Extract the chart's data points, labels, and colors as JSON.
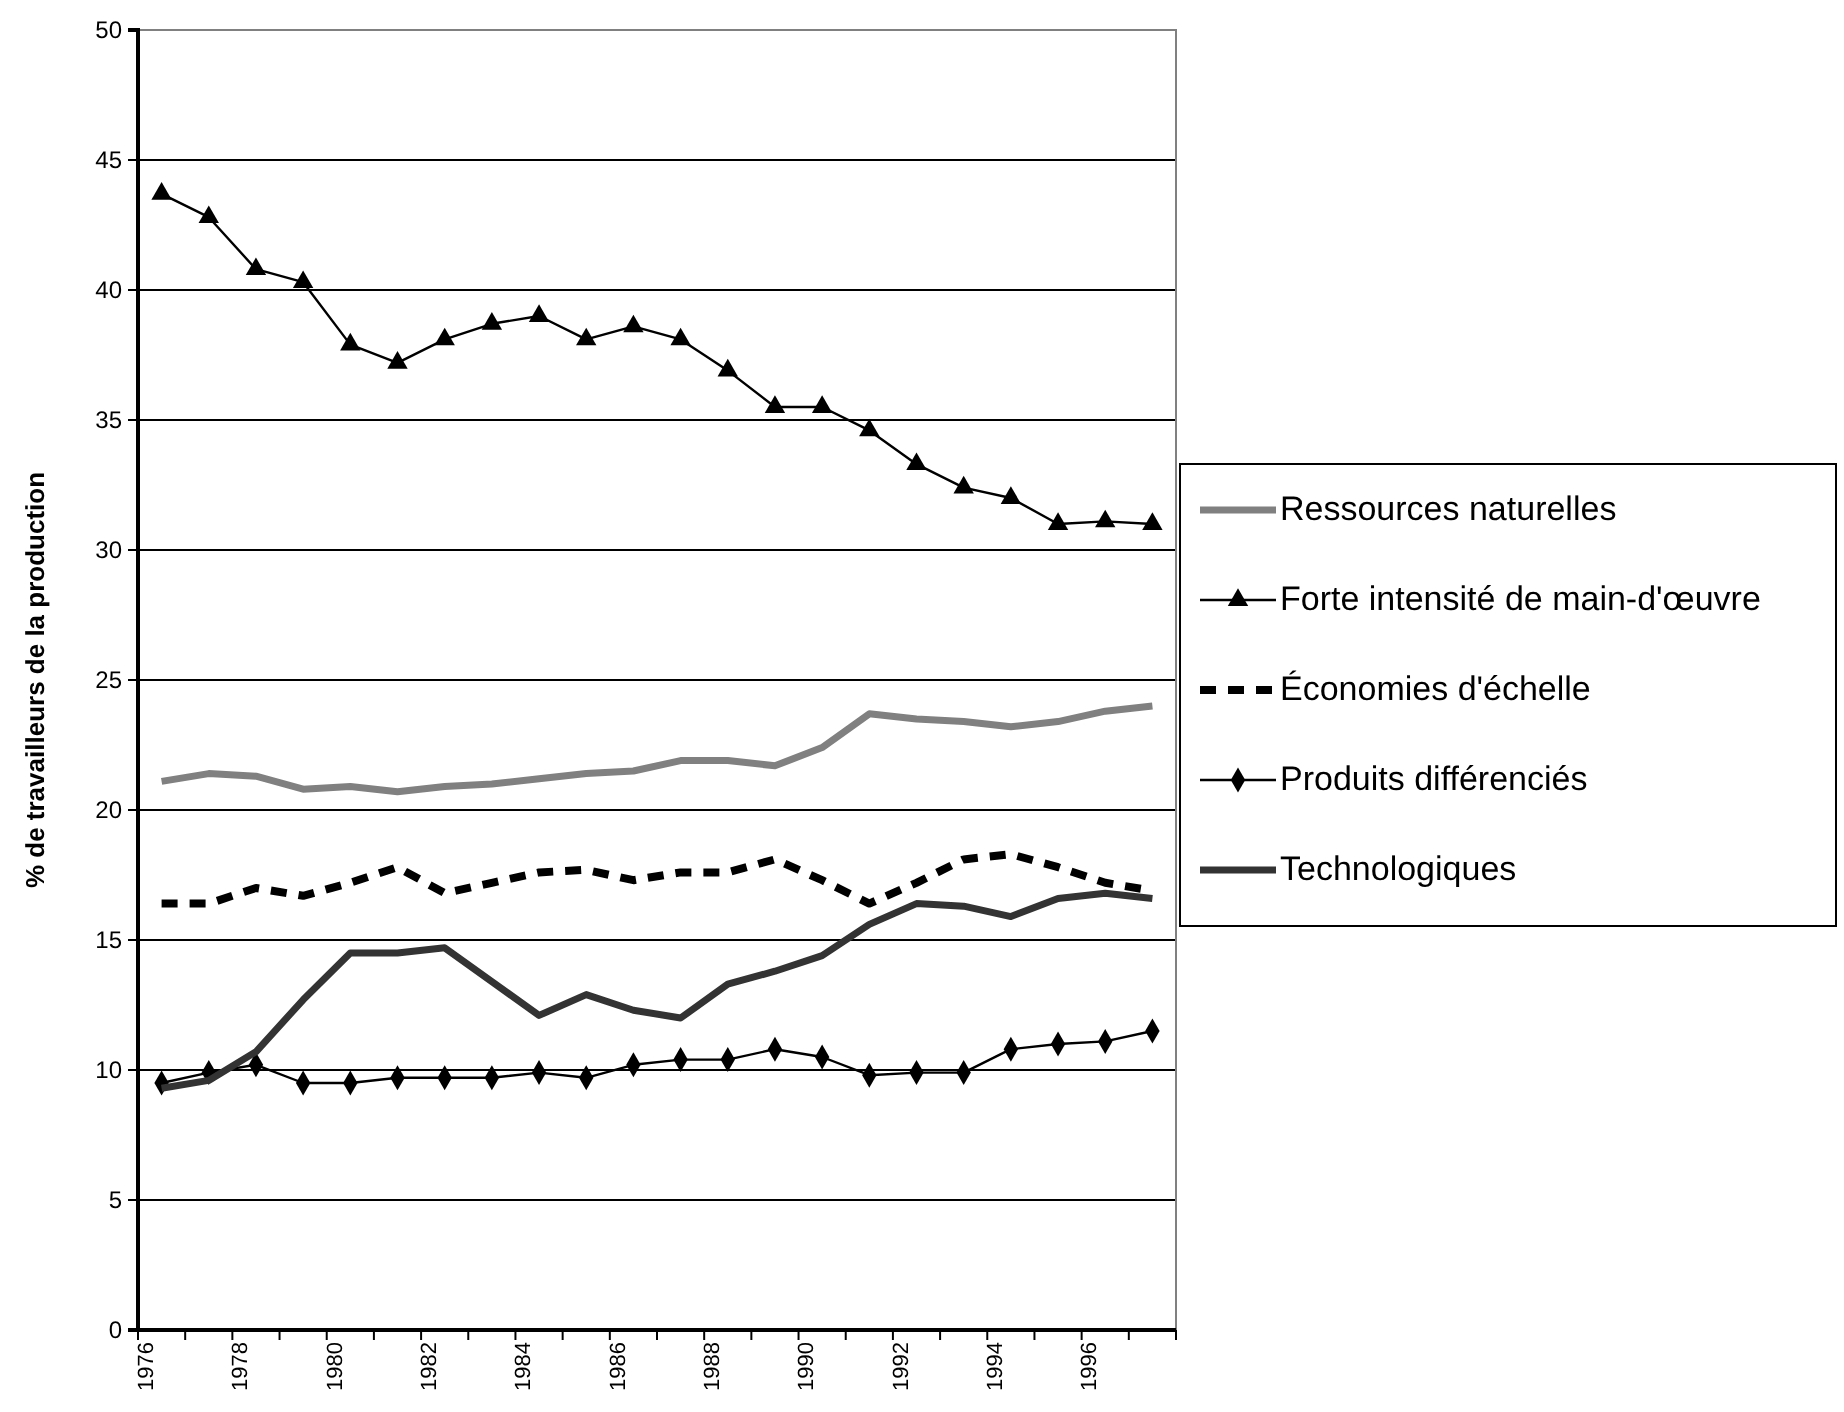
{
  "chart_data": {
    "type": "line",
    "ylabel": "% de travailleurs de la production",
    "categories": [
      "1976",
      null,
      "1978",
      null,
      "1980",
      null,
      "1982",
      null,
      "1984",
      null,
      "1986",
      null,
      "1988",
      null,
      "1990",
      null,
      "1992",
      null,
      "1994",
      null,
      "1996",
      null
    ],
    "ylim": [
      0,
      50
    ],
    "yticks": [
      0,
      5,
      10,
      15,
      20,
      25,
      30,
      35,
      40,
      45,
      50
    ],
    "grid": "y",
    "legend": "right",
    "series": [
      {
        "name": "Ressources naturelles",
        "color": "#808080",
        "marker": "none",
        "line_style": "solid",
        "values": [
          21.1,
          21.4,
          21.3,
          20.8,
          20.9,
          20.7,
          20.9,
          21.0,
          21.2,
          21.4,
          21.5,
          21.9,
          21.9,
          21.7,
          22.4,
          23.7,
          23.5,
          23.4,
          23.2,
          23.4,
          23.8,
          24.0
        ]
      },
      {
        "name": "Forte intensité de main-d'œuvre",
        "color": "#000000",
        "marker": "triangle",
        "line_style": "solid",
        "values": [
          43.7,
          42.8,
          40.8,
          40.3,
          37.9,
          37.2,
          38.1,
          38.7,
          39.0,
          38.1,
          38.6,
          38.1,
          36.9,
          35.5,
          35.5,
          34.6,
          33.3,
          32.4,
          32.0,
          31.0,
          31.1,
          31.0
        ]
      },
      {
        "name": "Économies d'échelle",
        "color": "#000000",
        "marker": "none",
        "line_style": "dashed",
        "values": [
          16.4,
          16.4,
          17.0,
          16.7,
          17.2,
          17.8,
          16.8,
          17.2,
          17.6,
          17.7,
          17.3,
          17.6,
          17.6,
          18.1,
          17.3,
          16.4,
          17.2,
          18.1,
          18.3,
          17.8,
          17.2,
          16.9
        ]
      },
      {
        "name": "Produits différenciés",
        "color": "#000000",
        "marker": "diamond",
        "line_style": "solid",
        "values": [
          9.5,
          9.9,
          10.2,
          9.5,
          9.5,
          9.7,
          9.7,
          9.7,
          9.9,
          9.7,
          10.2,
          10.4,
          10.4,
          10.8,
          10.5,
          9.8,
          9.9,
          9.9,
          10.8,
          11.0,
          11.1,
          11.5
        ]
      },
      {
        "name": "Technologiques",
        "color": "#333333",
        "marker": "none",
        "line_style": "solid",
        "values": [
          9.3,
          9.6,
          10.7,
          12.7,
          14.5,
          14.5,
          14.7,
          13.4,
          12.1,
          12.9,
          12.3,
          12.0,
          13.3,
          13.8,
          14.4,
          15.6,
          16.4,
          16.3,
          15.9,
          16.6,
          16.8,
          16.6
        ]
      }
    ]
  }
}
